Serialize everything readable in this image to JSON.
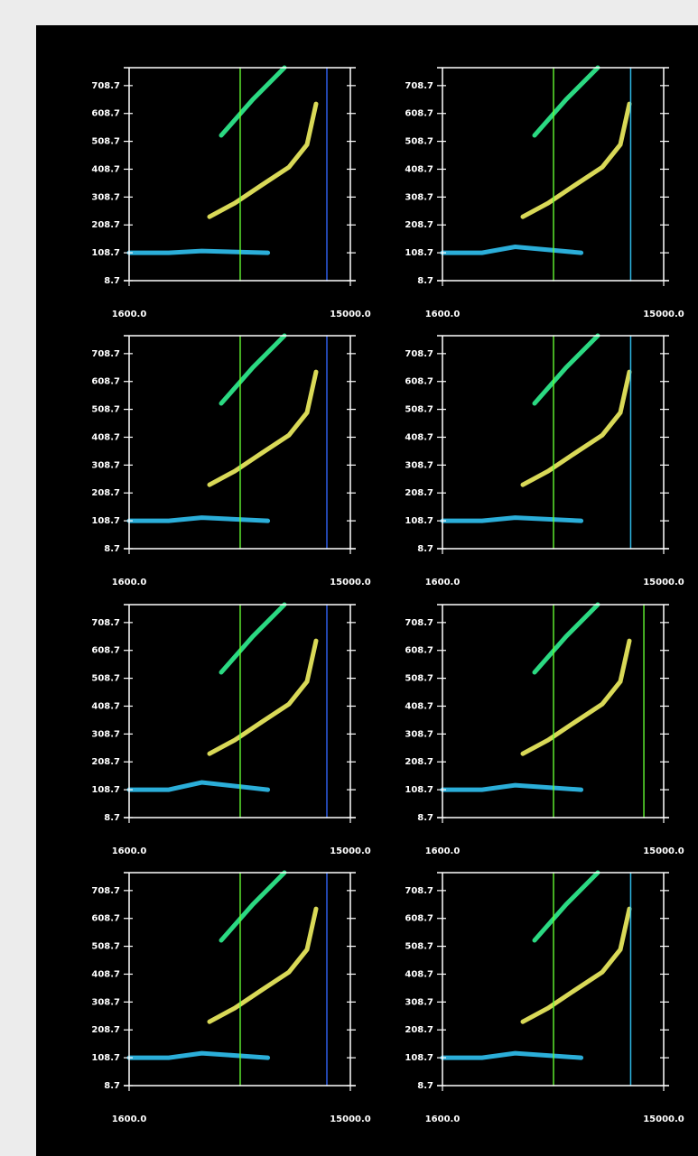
{
  "chart_data": [
    {
      "type": "line",
      "xlim": [
        1600,
        15000
      ],
      "ylim": [
        8.7,
        773
      ],
      "xticks": [
        {
          "value": 1600,
          "label": "1600.0"
        },
        {
          "value": 15000,
          "label": "15000.0"
        }
      ],
      "yticks": [
        8.7,
        108.7,
        208.7,
        308.7,
        408.7,
        508.7,
        608.7,
        708.7
      ],
      "series": [
        {
          "color": "#33ccff",
          "x": [
            1600,
            4000,
            6000,
            10000
          ],
          "values": [
            108.7,
            108.7,
            115,
            108.7
          ]
        },
        {
          "color": "#ffff66",
          "x": [
            6468,
            8000,
            9640,
            11281,
            12375,
            12922
          ],
          "values": [
            238,
            287,
            352,
            416,
            497,
            643
          ]
        },
        {
          "color": "#33ff99",
          "x": [
            7179,
            9093,
            11007
          ],
          "values": [
            530,
            659,
            773
          ]
        },
        {
          "color": "#66ff33",
          "x": [
            8327,
            8327
          ],
          "values": [
            8.7,
            773
          ]
        },
        {
          "color": "#3366ff",
          "x": [
            13578,
            13578
          ],
          "values": [
            8.7,
            773
          ]
        }
      ]
    },
    {
      "type": "line",
      "xlim": [
        1600,
        15000
      ],
      "ylim": [
        8.7,
        773
      ],
      "xticks": [
        {
          "value": 1600,
          "label": "1600.0"
        },
        {
          "value": 15000,
          "label": "15000.0"
        }
      ],
      "yticks": [
        8.7,
        108.7,
        208.7,
        308.7,
        408.7,
        508.7,
        608.7,
        708.7
      ],
      "series": [
        {
          "color": "#33ccff",
          "x": [
            1600,
            4000,
            6000,
            10000
          ],
          "values": [
            108.7,
            108.7,
            130,
            108.7
          ]
        },
        {
          "color": "#ffff66",
          "x": [
            6468,
            8000,
            9640,
            11281,
            12375,
            12922
          ],
          "values": [
            238,
            287,
            352,
            416,
            497,
            643
          ]
        },
        {
          "color": "#33ff99",
          "x": [
            7179,
            9093,
            11007
          ],
          "values": [
            530,
            659,
            773
          ]
        },
        {
          "color": "#66ff33",
          "x": [
            8327,
            8327
          ],
          "values": [
            8.7,
            773
          ]
        },
        {
          "color": "#33ccff",
          "x": [
            13000,
            13000
          ],
          "values": [
            8.7,
            773
          ]
        }
      ]
    },
    {
      "type": "line",
      "xlim": [
        1600,
        15000
      ],
      "ylim": [
        8.7,
        773
      ],
      "xticks": [
        {
          "value": 1600,
          "label": "1600.0"
        },
        {
          "value": 15000,
          "label": "15000.0"
        }
      ],
      "yticks": [
        8.7,
        108.7,
        208.7,
        308.7,
        408.7,
        508.7,
        608.7,
        708.7
      ],
      "series": [
        {
          "color": "#33ccff",
          "x": [
            1600,
            4000,
            6000,
            10000
          ],
          "values": [
            108.7,
            108.7,
            120,
            108.7
          ]
        },
        {
          "color": "#ffff66",
          "x": [
            6468,
            8000,
            9640,
            11281,
            12375,
            12922
          ],
          "values": [
            238,
            287,
            352,
            416,
            497,
            643
          ]
        },
        {
          "color": "#33ff99",
          "x": [
            7179,
            9093,
            11007
          ],
          "values": [
            530,
            659,
            773
          ]
        },
        {
          "color": "#66ff33",
          "x": [
            8327,
            8327
          ],
          "values": [
            8.7,
            773
          ]
        },
        {
          "color": "#3366ff",
          "x": [
            13578,
            13578
          ],
          "values": [
            8.7,
            773
          ]
        }
      ]
    },
    {
      "type": "line",
      "xlim": [
        1600,
        15000
      ],
      "ylim": [
        8.7,
        773
      ],
      "xticks": [
        {
          "value": 1600,
          "label": "1600.0"
        },
        {
          "value": 15000,
          "label": "15000.0"
        }
      ],
      "yticks": [
        8.7,
        108.7,
        208.7,
        308.7,
        408.7,
        508.7,
        608.7,
        708.7
      ],
      "series": [
        {
          "color": "#33ccff",
          "x": [
            1600,
            4000,
            6000,
            10000
          ],
          "values": [
            108.7,
            108.7,
            120,
            108.7
          ]
        },
        {
          "color": "#ffff66",
          "x": [
            6468,
            8000,
            9640,
            11281,
            12375,
            12922
          ],
          "values": [
            238,
            287,
            352,
            416,
            497,
            643
          ]
        },
        {
          "color": "#33ff99",
          "x": [
            7179,
            9093,
            11007
          ],
          "values": [
            530,
            659,
            773
          ]
        },
        {
          "color": "#66ff33",
          "x": [
            8327,
            8327
          ],
          "values": [
            8.7,
            773
          ]
        },
        {
          "color": "#33ccff",
          "x": [
            13000,
            13000
          ],
          "values": [
            8.7,
            773
          ]
        }
      ]
    },
    {
      "type": "line",
      "xlim": [
        1600,
        15000
      ],
      "ylim": [
        8.7,
        773
      ],
      "xticks": [
        {
          "value": 1600,
          "label": "1600.0"
        },
        {
          "value": 15000,
          "label": "15000.0"
        }
      ],
      "yticks": [
        8.7,
        108.7,
        208.7,
        308.7,
        408.7,
        508.7,
        608.7,
        708.7
      ],
      "series": [
        {
          "color": "#33ccff",
          "x": [
            1600,
            4000,
            6000,
            10000
          ],
          "values": [
            108.7,
            108.7,
            135,
            108.7
          ]
        },
        {
          "color": "#ffff66",
          "x": [
            6468,
            8000,
            9640,
            11281,
            12375,
            12922
          ],
          "values": [
            238,
            287,
            352,
            416,
            497,
            643
          ]
        },
        {
          "color": "#33ff99",
          "x": [
            7179,
            9093,
            11007
          ],
          "values": [
            530,
            659,
            773
          ]
        },
        {
          "color": "#66ff33",
          "x": [
            8327,
            8327
          ],
          "values": [
            8.7,
            773
          ]
        },
        {
          "color": "#3366ff",
          "x": [
            13578,
            13578
          ],
          "values": [
            8.7,
            773
          ]
        }
      ]
    },
    {
      "type": "line",
      "xlim": [
        1600,
        15000
      ],
      "ylim": [
        8.7,
        773
      ],
      "xticks": [
        {
          "value": 1600,
          "label": "1600.0"
        },
        {
          "value": 15000,
          "label": "15000.0"
        }
      ],
      "yticks": [
        8.7,
        108.7,
        208.7,
        308.7,
        408.7,
        508.7,
        608.7,
        708.7
      ],
      "series": [
        {
          "color": "#33ccff",
          "x": [
            1600,
            4000,
            6000,
            10000
          ],
          "values": [
            108.7,
            108.7,
            125,
            108.7
          ]
        },
        {
          "color": "#ffff66",
          "x": [
            6468,
            8000,
            9640,
            11281,
            12375,
            12922
          ],
          "values": [
            238,
            287,
            352,
            416,
            497,
            643
          ]
        },
        {
          "color": "#33ff99",
          "x": [
            7179,
            9093,
            11007
          ],
          "values": [
            530,
            659,
            773
          ]
        },
        {
          "color": "#66ff33",
          "x": [
            8327,
            8327
          ],
          "values": [
            8.7,
            773
          ]
        },
        {
          "color": "#66ff33",
          "x": [
            13800,
            13800
          ],
          "values": [
            8.7,
            773
          ]
        }
      ]
    },
    {
      "type": "line",
      "xlim": [
        1600,
        15000
      ],
      "ylim": [
        8.7,
        773
      ],
      "xticks": [
        {
          "value": 1600,
          "label": "1600.0"
        },
        {
          "value": 15000,
          "label": "15000.0"
        }
      ],
      "yticks": [
        8.7,
        108.7,
        208.7,
        308.7,
        408.7,
        508.7,
        608.7,
        708.7
      ],
      "series": [
        {
          "color": "#33ccff",
          "x": [
            1600,
            4000,
            6000,
            10000
          ],
          "values": [
            108.7,
            108.7,
            125,
            108.7
          ]
        },
        {
          "color": "#ffff66",
          "x": [
            6468,
            8000,
            9640,
            11281,
            12375,
            12922
          ],
          "values": [
            238,
            287,
            352,
            416,
            497,
            643
          ]
        },
        {
          "color": "#33ff99",
          "x": [
            7179,
            9093,
            11007
          ],
          "values": [
            530,
            659,
            773
          ]
        },
        {
          "color": "#66ff33",
          "x": [
            8327,
            8327
          ],
          "values": [
            8.7,
            773
          ]
        },
        {
          "color": "#3366ff",
          "x": [
            13578,
            13578
          ],
          "values": [
            8.7,
            773
          ]
        }
      ]
    },
    {
      "type": "line",
      "xlim": [
        1600,
        15000
      ],
      "ylim": [
        8.7,
        773
      ],
      "xticks": [
        {
          "value": 1600,
          "label": "1600.0"
        },
        {
          "value": 15000,
          "label": "15000.0"
        }
      ],
      "yticks": [
        8.7,
        108.7,
        208.7,
        308.7,
        408.7,
        508.7,
        608.7,
        708.7
      ],
      "series": [
        {
          "color": "#33ccff",
          "x": [
            1600,
            4000,
            6000,
            10000
          ],
          "values": [
            108.7,
            108.7,
            125,
            108.7
          ]
        },
        {
          "color": "#ffff66",
          "x": [
            6468,
            8000,
            9640,
            11281,
            12375,
            12922
          ],
          "values": [
            238,
            287,
            352,
            416,
            497,
            643
          ]
        },
        {
          "color": "#33ff99",
          "x": [
            7179,
            9093,
            11007
          ],
          "values": [
            530,
            659,
            773
          ]
        },
        {
          "color": "#66ff33",
          "x": [
            8327,
            8327
          ],
          "values": [
            8.7,
            773
          ]
        },
        {
          "color": "#33ccff",
          "x": [
            13000,
            13000
          ],
          "values": [
            8.7,
            773
          ]
        }
      ]
    }
  ]
}
